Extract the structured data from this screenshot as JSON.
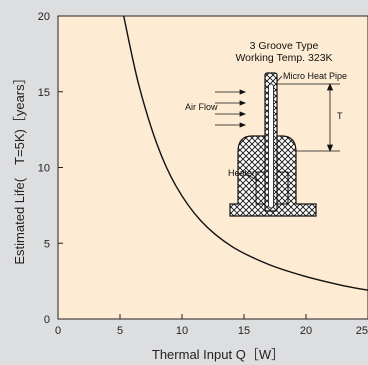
{
  "chart_data": {
    "type": "line",
    "title": "",
    "xlabel": "Thermal Input Q［W］",
    "ylabel": "Estimated Life(　T=5K)［years］",
    "xlim": [
      0,
      25
    ],
    "ylim": [
      0,
      20
    ],
    "x_ticks": [
      0,
      5,
      10,
      15,
      20,
      25
    ],
    "y_ticks": [
      0,
      5,
      10,
      15,
      20
    ],
    "grid": false,
    "series": [
      {
        "color": "#111111",
        "x": [
          5.3,
          6.5,
          8,
          9.5,
          11.5,
          14,
          17,
          20,
          23,
          25
        ],
        "y": [
          20,
          15.5,
          11.5,
          8.8,
          6.5,
          4.8,
          3.6,
          2.8,
          2.2,
          1.9
        ]
      }
    ],
    "annotations": {
      "type_label": "3 Groove Type",
      "temp_label": "Working Temp. 323K",
      "pipe_label": "Micro Heat Pipe",
      "airflow_label": "Air Flow",
      "heater_label": "Heater",
      "dimension_label": "T"
    },
    "colors": {
      "plot_background": "#fdebd3",
      "outer_background": "#dddee0",
      "curve": "#111111"
    }
  }
}
